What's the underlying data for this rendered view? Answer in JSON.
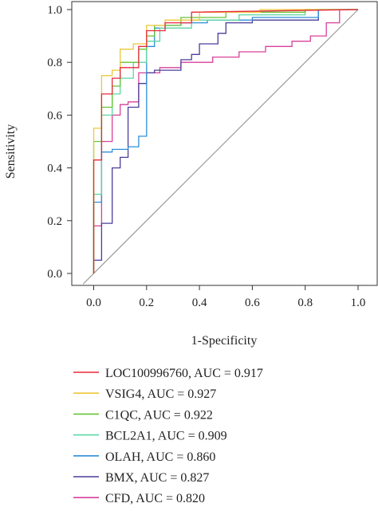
{
  "chart_data": {
    "type": "line",
    "xlabel": "1-Specificity",
    "ylabel": "Sensitivity",
    "xlim": [
      -0.04,
      1.08
    ],
    "ylim": [
      -0.03,
      1.03
    ],
    "x_ticks": [
      "0.0",
      "0.2",
      "0.4",
      "0.6",
      "0.8",
      "1.0"
    ],
    "y_ticks": [
      "0.0",
      "0.2",
      "0.4",
      "0.6",
      "0.8",
      "1.0"
    ],
    "grid": false,
    "legend_position": "below",
    "reference_line": {
      "from": [
        -0.04,
        -0.04
      ],
      "to": [
        1.0,
        1.0
      ],
      "color": "#9a9a9a"
    },
    "series": [
      {
        "name": "LOC100996760, AUC = 0.917",
        "color": "#e8283c",
        "points": [
          [
            0,
            0
          ],
          [
            0,
            0.43
          ],
          [
            0.03,
            0.43
          ],
          [
            0.03,
            0.68
          ],
          [
            0.07,
            0.68
          ],
          [
            0.07,
            0.74
          ],
          [
            0.1,
            0.74
          ],
          [
            0.1,
            0.78
          ],
          [
            0.17,
            0.78
          ],
          [
            0.17,
            0.86
          ],
          [
            0.2,
            0.86
          ],
          [
            0.2,
            0.92
          ],
          [
            0.27,
            0.92
          ],
          [
            0.27,
            0.95
          ],
          [
            0.37,
            0.95
          ],
          [
            0.37,
            0.99
          ],
          [
            1.0,
            1.0
          ]
        ]
      },
      {
        "name": "VSIG4, AUC = 0.927",
        "color": "#ecc83a",
        "points": [
          [
            0,
            0
          ],
          [
            0,
            0.55
          ],
          [
            0.03,
            0.55
          ],
          [
            0.03,
            0.75
          ],
          [
            0.07,
            0.75
          ],
          [
            0.07,
            0.77
          ],
          [
            0.1,
            0.77
          ],
          [
            0.1,
            0.85
          ],
          [
            0.15,
            0.85
          ],
          [
            0.15,
            0.87
          ],
          [
            0.2,
            0.87
          ],
          [
            0.2,
            0.94
          ],
          [
            0.27,
            0.94
          ],
          [
            0.27,
            0.96
          ],
          [
            0.4,
            0.96
          ],
          [
            0.4,
            0.99
          ],
          [
            0.63,
            0.99
          ],
          [
            0.63,
            1.0
          ],
          [
            1.0,
            1.0
          ]
        ]
      },
      {
        "name": "C1QC, AUC = 0.922",
        "color": "#66c436",
        "points": [
          [
            0,
            0
          ],
          [
            0,
            0.5
          ],
          [
            0.03,
            0.5
          ],
          [
            0.03,
            0.63
          ],
          [
            0.07,
            0.63
          ],
          [
            0.07,
            0.71
          ],
          [
            0.1,
            0.71
          ],
          [
            0.1,
            0.8
          ],
          [
            0.17,
            0.8
          ],
          [
            0.17,
            0.85
          ],
          [
            0.2,
            0.85
          ],
          [
            0.2,
            0.9
          ],
          [
            0.23,
            0.9
          ],
          [
            0.23,
            0.94
          ],
          [
            0.33,
            0.94
          ],
          [
            0.33,
            0.97
          ],
          [
            0.5,
            0.97
          ],
          [
            0.5,
            0.99
          ],
          [
            0.8,
            0.99
          ],
          [
            0.8,
            1.0
          ],
          [
            1.0,
            1.0
          ]
        ]
      },
      {
        "name": "BCL2A1, AUC = 0.909",
        "color": "#5ed6a2",
        "points": [
          [
            0,
            0
          ],
          [
            0,
            0.3
          ],
          [
            0.03,
            0.3
          ],
          [
            0.03,
            0.6
          ],
          [
            0.07,
            0.6
          ],
          [
            0.07,
            0.68
          ],
          [
            0.1,
            0.68
          ],
          [
            0.1,
            0.74
          ],
          [
            0.15,
            0.74
          ],
          [
            0.15,
            0.8
          ],
          [
            0.2,
            0.8
          ],
          [
            0.2,
            0.88
          ],
          [
            0.25,
            0.88
          ],
          [
            0.25,
            0.93
          ],
          [
            0.37,
            0.93
          ],
          [
            0.37,
            0.96
          ],
          [
            0.55,
            0.96
          ],
          [
            0.55,
            0.98
          ],
          [
            0.8,
            0.98
          ],
          [
            0.8,
            1.0
          ],
          [
            1.0,
            1.0
          ]
        ]
      },
      {
        "name": "OLAH, AUC = 0.860",
        "color": "#2f8fd8",
        "points": [
          [
            0,
            0
          ],
          [
            0,
            0.27
          ],
          [
            0.03,
            0.27
          ],
          [
            0.03,
            0.46
          ],
          [
            0.07,
            0.46
          ],
          [
            0.07,
            0.47
          ],
          [
            0.13,
            0.47
          ],
          [
            0.13,
            0.48
          ],
          [
            0.17,
            0.48
          ],
          [
            0.17,
            0.52
          ],
          [
            0.2,
            0.52
          ],
          [
            0.2,
            0.86
          ],
          [
            0.23,
            0.86
          ],
          [
            0.23,
            0.93
          ],
          [
            0.27,
            0.93
          ],
          [
            0.27,
            0.94
          ],
          [
            0.33,
            0.94
          ],
          [
            0.33,
            0.95
          ],
          [
            0.43,
            0.95
          ],
          [
            0.43,
            0.96
          ],
          [
            0.6,
            0.96
          ],
          [
            0.6,
            0.97
          ],
          [
            0.85,
            0.97
          ],
          [
            0.85,
            1.0
          ],
          [
            1.0,
            1.0
          ]
        ]
      },
      {
        "name": "BMX, AUC = 0.827",
        "color": "#4a3e9a",
        "points": [
          [
            0,
            0
          ],
          [
            0,
            0.05
          ],
          [
            0.03,
            0.05
          ],
          [
            0.03,
            0.19
          ],
          [
            0.07,
            0.19
          ],
          [
            0.07,
            0.4
          ],
          [
            0.1,
            0.4
          ],
          [
            0.1,
            0.44
          ],
          [
            0.13,
            0.44
          ],
          [
            0.13,
            0.63
          ],
          [
            0.17,
            0.63
          ],
          [
            0.17,
            0.72
          ],
          [
            0.2,
            0.72
          ],
          [
            0.2,
            0.76
          ],
          [
            0.23,
            0.76
          ],
          [
            0.23,
            0.77
          ],
          [
            0.33,
            0.77
          ],
          [
            0.33,
            0.81
          ],
          [
            0.37,
            0.81
          ],
          [
            0.37,
            0.83
          ],
          [
            0.4,
            0.83
          ],
          [
            0.4,
            0.87
          ],
          [
            0.47,
            0.87
          ],
          [
            0.47,
            0.91
          ],
          [
            0.5,
            0.91
          ],
          [
            0.5,
            0.95
          ],
          [
            0.6,
            0.95
          ],
          [
            0.6,
            0.96
          ],
          [
            0.85,
            0.96
          ],
          [
            0.85,
            1.0
          ],
          [
            1.0,
            1.0
          ]
        ]
      },
      {
        "name": "CFD, AUC = 0.820",
        "color": "#d8409a",
        "points": [
          [
            0,
            0
          ],
          [
            0,
            0.18
          ],
          [
            0.03,
            0.18
          ],
          [
            0.03,
            0.5
          ],
          [
            0.07,
            0.5
          ],
          [
            0.07,
            0.6
          ],
          [
            0.1,
            0.6
          ],
          [
            0.1,
            0.64
          ],
          [
            0.13,
            0.64
          ],
          [
            0.13,
            0.65
          ],
          [
            0.17,
            0.65
          ],
          [
            0.17,
            0.76
          ],
          [
            0.25,
            0.76
          ],
          [
            0.25,
            0.78
          ],
          [
            0.33,
            0.78
          ],
          [
            0.33,
            0.8
          ],
          [
            0.45,
            0.8
          ],
          [
            0.45,
            0.82
          ],
          [
            0.55,
            0.82
          ],
          [
            0.55,
            0.84
          ],
          [
            0.65,
            0.84
          ],
          [
            0.65,
            0.86
          ],
          [
            0.75,
            0.86
          ],
          [
            0.75,
            0.88
          ],
          [
            0.82,
            0.88
          ],
          [
            0.82,
            0.9
          ],
          [
            0.88,
            0.9
          ],
          [
            0.88,
            0.95
          ],
          [
            0.93,
            0.95
          ],
          [
            0.93,
            1.0
          ],
          [
            1.0,
            1.0
          ]
        ]
      }
    ]
  }
}
